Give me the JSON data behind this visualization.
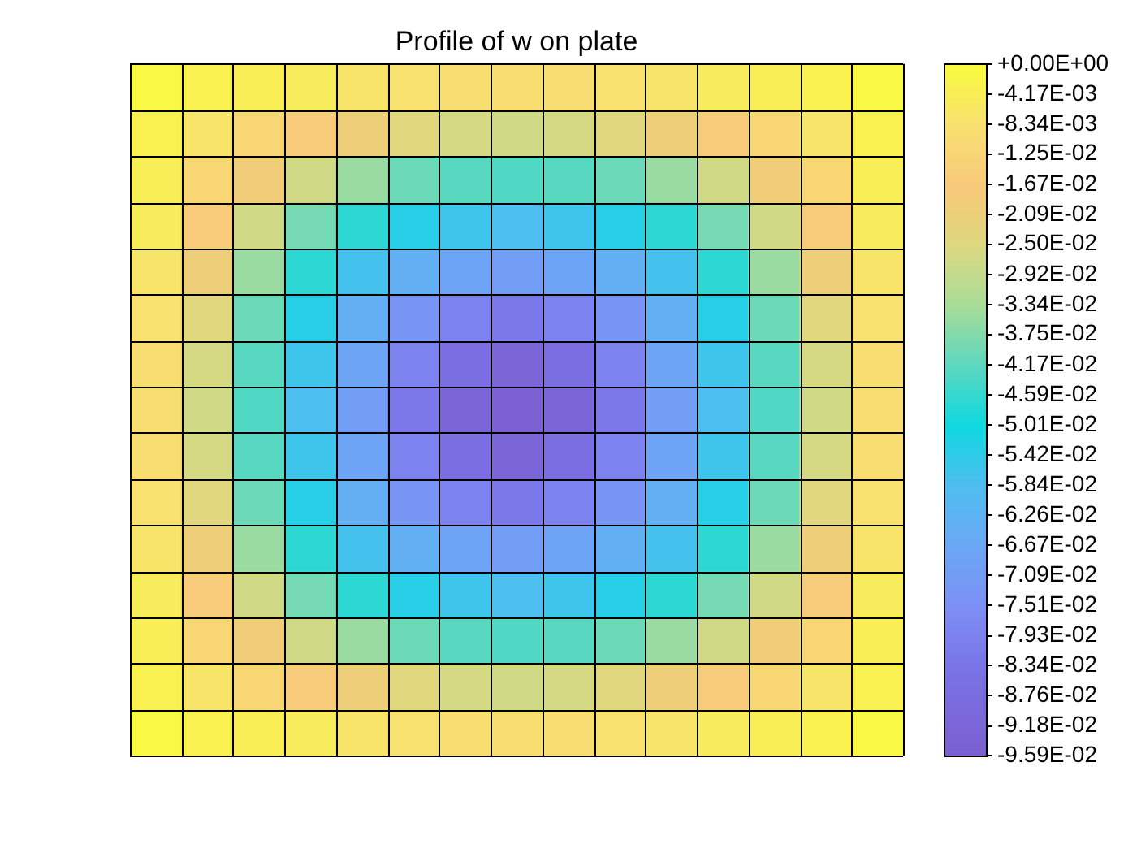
{
  "chart_data": {
    "type": "heatmap",
    "title": "Profile of w on plate",
    "categories": [
      null,
      null,
      null,
      null,
      null,
      null,
      null,
      null,
      null,
      null,
      null,
      null,
      null,
      null,
      null
    ],
    "y_categories": [
      null,
      null,
      null,
      null,
      null,
      null,
      null,
      null,
      null,
      null,
      null,
      null,
      null,
      null,
      null
    ],
    "cells": [
      [
        -0.001,
        -0.003,
        -0.004,
        -0.005,
        -0.007,
        -0.008,
        -0.009,
        -0.009,
        -0.009,
        -0.008,
        -0.007,
        -0.005,
        -0.004,
        -0.003,
        -0.001
      ],
      [
        -0.003,
        -0.007,
        -0.012,
        -0.016,
        -0.02,
        -0.024,
        -0.026,
        -0.027,
        -0.026,
        -0.024,
        -0.02,
        -0.016,
        -0.012,
        -0.007,
        -0.003
      ],
      [
        -0.004,
        -0.012,
        -0.019,
        -0.027,
        -0.035,
        -0.04,
        -0.042,
        -0.043,
        -0.042,
        -0.04,
        -0.035,
        -0.027,
        -0.019,
        -0.012,
        -0.004
      ],
      [
        -0.005,
        -0.016,
        -0.027,
        -0.039,
        -0.047,
        -0.053,
        -0.056,
        -0.058,
        -0.056,
        -0.053,
        -0.047,
        -0.039,
        -0.027,
        -0.016,
        -0.005
      ],
      [
        -0.007,
        -0.02,
        -0.035,
        -0.047,
        -0.057,
        -0.064,
        -0.068,
        -0.07,
        -0.068,
        -0.064,
        -0.057,
        -0.047,
        -0.035,
        -0.02,
        -0.007
      ],
      [
        -0.008,
        -0.024,
        -0.04,
        -0.053,
        -0.064,
        -0.073,
        -0.079,
        -0.082,
        -0.079,
        -0.073,
        -0.064,
        -0.053,
        -0.04,
        -0.024,
        -0.008
      ],
      [
        -0.009,
        -0.026,
        -0.042,
        -0.056,
        -0.068,
        -0.079,
        -0.087,
        -0.092,
        -0.087,
        -0.079,
        -0.068,
        -0.056,
        -0.042,
        -0.026,
        -0.009
      ],
      [
        -0.009,
        -0.027,
        -0.043,
        -0.058,
        -0.07,
        -0.082,
        -0.092,
        -0.095,
        -0.092,
        -0.082,
        -0.07,
        -0.058,
        -0.043,
        -0.027,
        -0.009
      ],
      [
        -0.009,
        -0.026,
        -0.042,
        -0.056,
        -0.068,
        -0.079,
        -0.087,
        -0.092,
        -0.087,
        -0.079,
        -0.068,
        -0.056,
        -0.042,
        -0.026,
        -0.009
      ],
      [
        -0.008,
        -0.024,
        -0.04,
        -0.053,
        -0.064,
        -0.073,
        -0.079,
        -0.082,
        -0.079,
        -0.073,
        -0.064,
        -0.053,
        -0.04,
        -0.024,
        -0.008
      ],
      [
        -0.007,
        -0.02,
        -0.035,
        -0.047,
        -0.057,
        -0.064,
        -0.068,
        -0.07,
        -0.068,
        -0.064,
        -0.057,
        -0.047,
        -0.035,
        -0.02,
        -0.007
      ],
      [
        -0.005,
        -0.016,
        -0.027,
        -0.039,
        -0.047,
        -0.053,
        -0.056,
        -0.058,
        -0.056,
        -0.053,
        -0.047,
        -0.039,
        -0.027,
        -0.016,
        -0.005
      ],
      [
        -0.004,
        -0.012,
        -0.019,
        -0.027,
        -0.035,
        -0.04,
        -0.042,
        -0.043,
        -0.042,
        -0.04,
        -0.035,
        -0.027,
        -0.019,
        -0.012,
        -0.004
      ],
      [
        -0.003,
        -0.007,
        -0.012,
        -0.016,
        -0.02,
        -0.024,
        -0.026,
        -0.027,
        -0.026,
        -0.024,
        -0.02,
        -0.016,
        -0.012,
        -0.007,
        -0.003
      ],
      [
        -0.001,
        -0.003,
        -0.004,
        -0.005,
        -0.007,
        -0.008,
        -0.009,
        -0.009,
        -0.009,
        -0.008,
        -0.007,
        -0.005,
        -0.004,
        -0.003,
        -0.001
      ]
    ],
    "clim": [
      -0.0959,
      0
    ],
    "cticks": [
      {
        "value": 0,
        "label": "+0.00E+00"
      },
      {
        "value": -0.00417,
        "label": "-4.17E-03"
      },
      {
        "value": -0.00834,
        "label": "-8.34E-03"
      },
      {
        "value": -0.0125,
        "label": "-1.25E-02"
      },
      {
        "value": -0.0167,
        "label": "-1.67E-02"
      },
      {
        "value": -0.0209,
        "label": "-2.09E-02"
      },
      {
        "value": -0.025,
        "label": "-2.50E-02"
      },
      {
        "value": -0.0292,
        "label": "-2.92E-02"
      },
      {
        "value": -0.0334,
        "label": "-3.34E-02"
      },
      {
        "value": -0.0375,
        "label": "-3.75E-02"
      },
      {
        "value": -0.0417,
        "label": "-4.17E-02"
      },
      {
        "value": -0.0459,
        "label": "-4.59E-02"
      },
      {
        "value": -0.0501,
        "label": "-5.01E-02"
      },
      {
        "value": -0.0542,
        "label": "-5.42E-02"
      },
      {
        "value": -0.0584,
        "label": "-5.84E-02"
      },
      {
        "value": -0.0626,
        "label": "-6.26E-02"
      },
      {
        "value": -0.0667,
        "label": "-6.67E-02"
      },
      {
        "value": -0.0709,
        "label": "-7.09E-02"
      },
      {
        "value": -0.0751,
        "label": "-7.51E-02"
      },
      {
        "value": -0.0793,
        "label": "-7.93E-02"
      },
      {
        "value": -0.0834,
        "label": "-8.34E-02"
      },
      {
        "value": -0.0876,
        "label": "-8.76E-02"
      },
      {
        "value": -0.0918,
        "label": "-9.18E-02"
      },
      {
        "value": -0.0959,
        "label": "-9.59E-02"
      }
    ],
    "grid": true
  }
}
